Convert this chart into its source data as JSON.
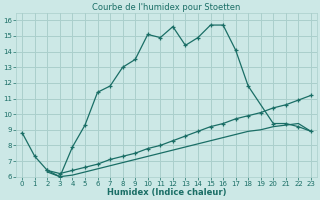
{
  "title": "Courbe de l'humidex pour Stoetten",
  "xlabel": "Humidex (Indice chaleur)",
  "xlim": [
    -0.5,
    23.5
  ],
  "ylim": [
    6,
    16.5
  ],
  "xticks": [
    0,
    1,
    2,
    3,
    4,
    5,
    6,
    7,
    8,
    9,
    10,
    11,
    12,
    13,
    14,
    15,
    16,
    17,
    18,
    19,
    20,
    21,
    22,
    23
  ],
  "yticks": [
    6,
    7,
    8,
    9,
    10,
    11,
    12,
    13,
    14,
    15,
    16
  ],
  "bg_color": "#cce8e6",
  "grid_color": "#aacfcc",
  "line_color": "#1a6e66",
  "line1_x": [
    0,
    1,
    2,
    3,
    4,
    5,
    6,
    7,
    8,
    9,
    10,
    11,
    12,
    13,
    14,
    15,
    16,
    17,
    18,
    20,
    21,
    22,
    23
  ],
  "line1_y": [
    8.8,
    7.3,
    6.4,
    6.0,
    7.9,
    9.3,
    11.4,
    11.8,
    13.0,
    13.5,
    15.1,
    14.9,
    15.6,
    14.4,
    14.9,
    15.7,
    15.7,
    14.1,
    11.8,
    9.4,
    9.4,
    9.2,
    8.9
  ],
  "line2_x": [
    2,
    3,
    4,
    5,
    6,
    7,
    8,
    9,
    10,
    11,
    12,
    13,
    14,
    15,
    16,
    17,
    18,
    19,
    20,
    21,
    22,
    23
  ],
  "line2_y": [
    6.4,
    6.2,
    6.4,
    6.6,
    6.8,
    7.1,
    7.3,
    7.5,
    7.8,
    8.0,
    8.3,
    8.6,
    8.9,
    9.2,
    9.4,
    9.7,
    9.9,
    10.1,
    10.4,
    10.6,
    10.9,
    11.2
  ],
  "line3_x": [
    2,
    3,
    4,
    5,
    6,
    7,
    8,
    9,
    10,
    11,
    12,
    13,
    14,
    15,
    16,
    17,
    18,
    19,
    20,
    21,
    22,
    23
  ],
  "line3_y": [
    6.3,
    6.0,
    6.1,
    6.3,
    6.5,
    6.7,
    6.9,
    7.1,
    7.3,
    7.5,
    7.7,
    7.9,
    8.1,
    8.3,
    8.5,
    8.7,
    8.9,
    9.0,
    9.2,
    9.3,
    9.4,
    8.9
  ]
}
